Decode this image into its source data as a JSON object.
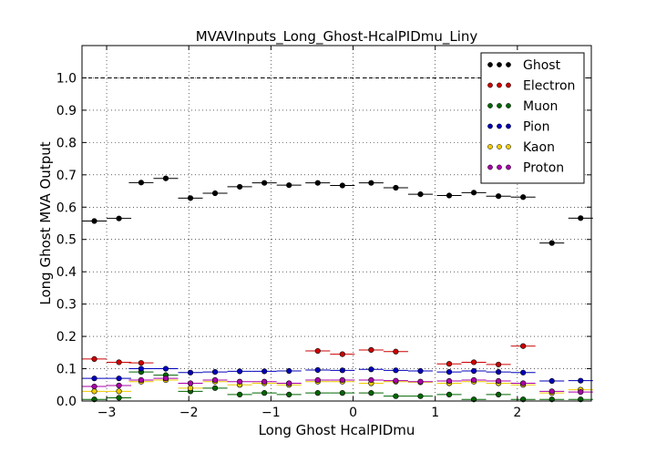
{
  "chart_data": {
    "type": "scatter",
    "title": "MVAVInputs_Long_Ghost-HcalPIDmu_Liny",
    "xlabel": "Long Ghost HcalPIDmu",
    "ylabel": "Long Ghost MVA Output",
    "xlim": [
      -3.3,
      2.9
    ],
    "ylim": [
      0.0,
      1.1
    ],
    "xticks": [
      -3,
      -2,
      -1,
      0,
      1,
      2
    ],
    "xtick_labels": [
      "−3",
      "−2",
      "−1",
      "0",
      "1",
      "2"
    ],
    "yticks": [
      0.0,
      0.1,
      0.2,
      0.3,
      0.4,
      0.5,
      0.6,
      0.7,
      0.8,
      0.9,
      1.0
    ],
    "ytick_labels": [
      "0.0",
      "0.1",
      "0.2",
      "0.3",
      "0.4",
      "0.5",
      "0.6",
      "0.7",
      "0.8",
      "0.9",
      "1.0"
    ],
    "reference_line_y": 1.0,
    "grid": true,
    "legend_position": "top-right",
    "series": [
      {
        "name": "Ghost",
        "color": "#000000",
        "x": [
          -3.15,
          -2.85,
          -2.58,
          -2.28,
          -1.98,
          -1.68,
          -1.38,
          -1.08,
          -0.78,
          -0.43,
          -0.13,
          0.22,
          0.52,
          0.82,
          1.17,
          1.47,
          1.77,
          2.07,
          2.42,
          2.77
        ],
        "y": [
          0.557,
          0.565,
          0.676,
          0.689,
          0.628,
          0.643,
          0.663,
          0.675,
          0.668,
          0.675,
          0.667,
          0.675,
          0.66,
          0.64,
          0.636,
          0.645,
          0.634,
          0.631,
          0.489,
          0.566
        ]
      },
      {
        "name": "Electron",
        "color": "#cc0000",
        "x": [
          -3.15,
          -2.85,
          -2.58,
          -0.43,
          -0.13,
          0.22,
          0.52,
          1.17,
          1.47,
          1.77,
          2.07
        ],
        "y": [
          0.13,
          0.12,
          0.118,
          0.155,
          0.145,
          0.158,
          0.153,
          0.115,
          0.12,
          0.113,
          0.17
        ]
      },
      {
        "name": "Muon",
        "color": "#006600",
        "x": [
          -3.15,
          -2.85,
          -2.58,
          -2.28,
          -1.98,
          -1.68,
          -1.38,
          -1.08,
          -0.78,
          -0.43,
          -0.13,
          0.22,
          0.52,
          0.82,
          1.17,
          1.47,
          1.77,
          2.07,
          2.42,
          2.77
        ],
        "y": [
          0.005,
          0.01,
          0.09,
          0.08,
          0.03,
          0.04,
          0.02,
          0.025,
          0.02,
          0.025,
          0.025,
          0.025,
          0.015,
          0.015,
          0.02,
          0.005,
          0.02,
          0.005,
          0.005,
          0.005
        ]
      },
      {
        "name": "Pion",
        "color": "#0000bb",
        "x": [
          -3.15,
          -2.85,
          -2.58,
          -2.28,
          -1.98,
          -1.68,
          -1.38,
          -1.08,
          -0.78,
          -0.43,
          -0.13,
          0.22,
          0.52,
          0.82,
          1.17,
          1.47,
          1.77,
          2.07,
          2.42,
          2.77
        ],
        "y": [
          0.07,
          0.07,
          0.1,
          0.1,
          0.088,
          0.09,
          0.092,
          0.092,
          0.093,
          0.096,
          0.095,
          0.098,
          0.095,
          0.093,
          0.09,
          0.093,
          0.09,
          0.088,
          0.062,
          0.063
        ]
      },
      {
        "name": "Kaon",
        "color": "#eecc00",
        "x": [
          -3.15,
          -2.85,
          -2.58,
          -2.28,
          -1.98,
          -1.68,
          -1.38,
          -1.08,
          -0.78,
          -0.43,
          -0.13,
          0.22,
          0.52,
          0.82,
          1.17,
          1.47,
          1.77,
          2.07,
          2.42,
          2.77
        ],
        "y": [
          0.03,
          0.03,
          0.06,
          0.065,
          0.04,
          0.06,
          0.05,
          0.055,
          0.05,
          0.06,
          0.06,
          0.055,
          0.06,
          0.058,
          0.055,
          0.06,
          0.055,
          0.05,
          0.025,
          0.035
        ]
      },
      {
        "name": "Proton",
        "color": "#aa00aa",
        "x": [
          -3.15,
          -2.85,
          -2.58,
          -2.28,
          -1.98,
          -1.68,
          -1.38,
          -1.08,
          -0.78,
          -0.43,
          -0.13,
          0.22,
          0.52,
          0.82,
          1.17,
          1.47,
          1.77,
          2.07,
          2.42,
          2.77
        ],
        "y": [
          0.045,
          0.048,
          0.065,
          0.07,
          0.055,
          0.065,
          0.06,
          0.06,
          0.055,
          0.065,
          0.065,
          0.065,
          0.063,
          0.06,
          0.062,
          0.065,
          0.062,
          0.055,
          0.03,
          0.028
        ]
      }
    ]
  }
}
